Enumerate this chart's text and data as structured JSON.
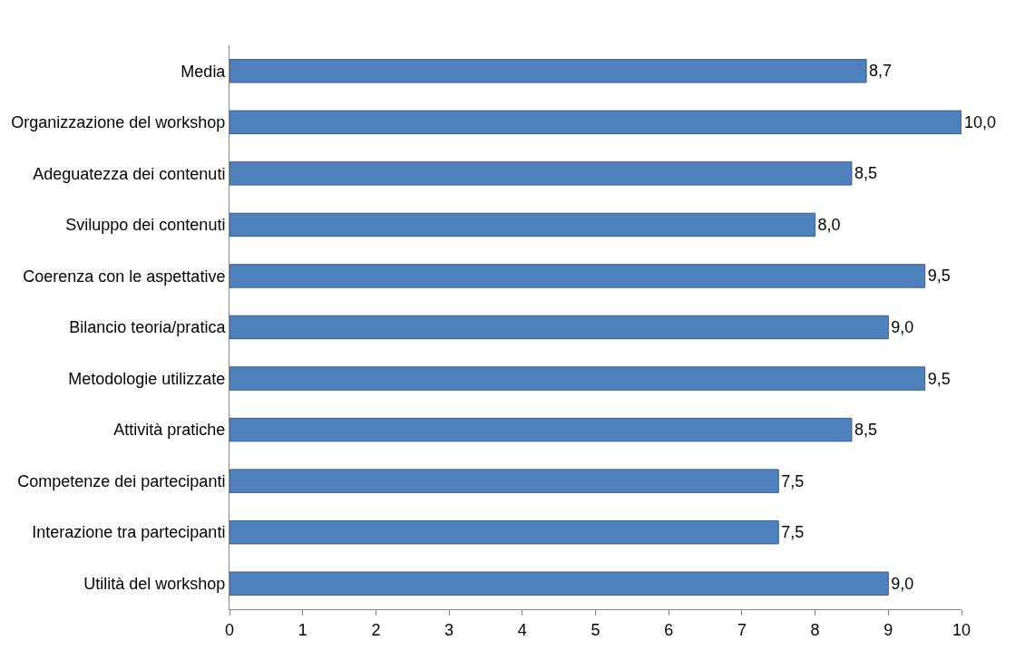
{
  "chart_data": {
    "type": "bar",
    "orientation": "horizontal",
    "categories": [
      "Media",
      "Organizzazione del workshop",
      "Adeguatezza dei contenuti",
      "Sviluppo dei contenuti",
      "Coerenza con le aspettative",
      "Bilancio teoria/pratica",
      "Metodologie utilizzate",
      "Attività pratiche",
      "Competenze dei partecipanti",
      "Interazione tra partecipanti",
      "Utilità del workshop"
    ],
    "values": [
      8.7,
      10.0,
      8.5,
      8.0,
      9.5,
      9.0,
      9.5,
      8.5,
      7.5,
      7.5,
      9.0
    ],
    "value_labels": [
      "8,7",
      "10,0",
      "8,5",
      "8,0",
      "9,5",
      "9,0",
      "9,5",
      "8,5",
      "7,5",
      "7,5",
      "9,0"
    ],
    "color": "#4f81bd",
    "xlim": [
      0,
      10
    ],
    "xticks": [
      0,
      1,
      2,
      3,
      4,
      5,
      6,
      7,
      8,
      9,
      10
    ],
    "grid": false
  }
}
